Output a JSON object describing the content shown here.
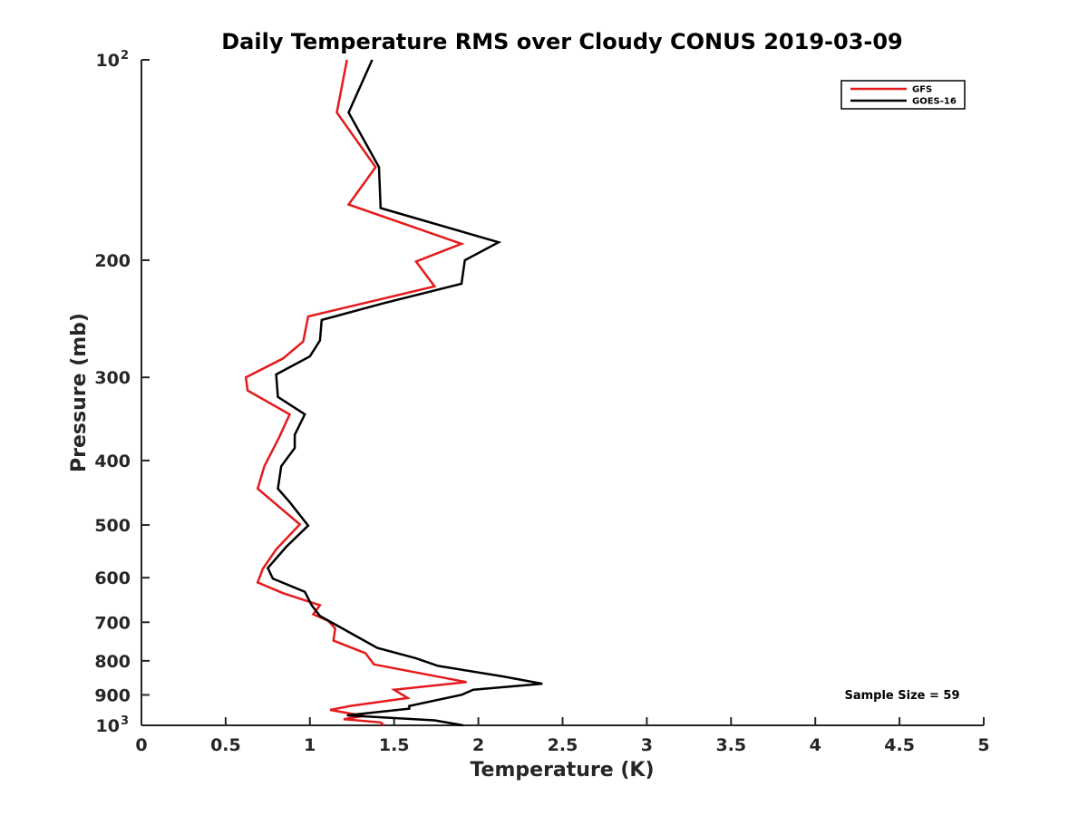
{
  "chart_data": {
    "type": "line",
    "title": "Daily Temperature RMS over Cloudy CONUS 2019-03-09",
    "xlabel": "Temperature (K)",
    "ylabel": "Pressure (mb)",
    "xlim": [
      0,
      5
    ],
    "ylim": [
      100,
      1000
    ],
    "y_scale": "log",
    "y_reversed": true,
    "grid": false,
    "legend_position": "top-right",
    "annotation": "Sample Size = 59",
    "x_ticks": [
      {
        "value": 0,
        "label": "0"
      },
      {
        "value": 0.5,
        "label": "0.5"
      },
      {
        "value": 1,
        "label": "1"
      },
      {
        "value": 1.5,
        "label": "1.5"
      },
      {
        "value": 2,
        "label": "2"
      },
      {
        "value": 2.5,
        "label": "2.5"
      },
      {
        "value": 3,
        "label": "3"
      },
      {
        "value": 3.5,
        "label": "3.5"
      },
      {
        "value": 4,
        "label": "4"
      },
      {
        "value": 4.5,
        "label": "4.5"
      },
      {
        "value": 5,
        "label": "5"
      }
    ],
    "y_ticks": [
      {
        "value": 100,
        "label": "10",
        "sup": "2"
      },
      {
        "value": 200,
        "label": "200",
        "sup": ""
      },
      {
        "value": 300,
        "label": "300",
        "sup": ""
      },
      {
        "value": 400,
        "label": "400",
        "sup": ""
      },
      {
        "value": 500,
        "label": "500",
        "sup": ""
      },
      {
        "value": 600,
        "label": "600",
        "sup": ""
      },
      {
        "value": 700,
        "label": "700",
        "sup": ""
      },
      {
        "value": 800,
        "label": "800",
        "sup": ""
      },
      {
        "value": 900,
        "label": "900",
        "sup": ""
      },
      {
        "value": 1000,
        "label": "10",
        "sup": "3"
      }
    ],
    "series": [
      {
        "name": "GFS",
        "color": "#e41a1c",
        "points": [
          [
            1.22,
            100
          ],
          [
            1.16,
            120
          ],
          [
            1.39,
            145
          ],
          [
            1.23,
            165
          ],
          [
            1.9,
            189
          ],
          [
            1.63,
            201
          ],
          [
            1.74,
            219
          ],
          [
            0.99,
            243
          ],
          [
            0.96,
            265
          ],
          [
            0.84,
            281
          ],
          [
            0.62,
            300
          ],
          [
            0.63,
            314
          ],
          [
            0.88,
            341
          ],
          [
            0.82,
            368
          ],
          [
            0.73,
            408
          ],
          [
            0.69,
            441
          ],
          [
            0.94,
            499
          ],
          [
            0.8,
            544
          ],
          [
            0.72,
            582
          ],
          [
            0.69,
            610
          ],
          [
            0.84,
            633
          ],
          [
            1.06,
            660
          ],
          [
            1.02,
            681
          ],
          [
            1.11,
            697
          ],
          [
            1.15,
            715
          ],
          [
            1.14,
            746
          ],
          [
            1.33,
            779
          ],
          [
            1.38,
            810
          ],
          [
            1.93,
            861
          ],
          [
            1.5,
            884
          ],
          [
            1.58,
            910
          ],
          [
            1.24,
            935
          ],
          [
            1.12,
            948
          ],
          [
            1.32,
            968
          ],
          [
            1.2,
            979
          ],
          [
            1.42,
            990
          ],
          [
            1.44,
            1000
          ]
        ]
      },
      {
        "name": "GOES-16",
        "color": "#000000",
        "points": [
          [
            1.37,
            100
          ],
          [
            1.23,
            120
          ],
          [
            1.41,
            145
          ],
          [
            1.42,
            167
          ],
          [
            2.12,
            188
          ],
          [
            1.92,
            200
          ],
          [
            1.9,
            217
          ],
          [
            1.44,
            232
          ],
          [
            1.07,
            246
          ],
          [
            1.06,
            264
          ],
          [
            1.0,
            279
          ],
          [
            0.8,
            297
          ],
          [
            0.81,
            321
          ],
          [
            0.97,
            341
          ],
          [
            0.91,
            366
          ],
          [
            0.91,
            383
          ],
          [
            0.83,
            408
          ],
          [
            0.81,
            441
          ],
          [
            0.88,
            462
          ],
          [
            0.99,
            501
          ],
          [
            0.86,
            539
          ],
          [
            0.75,
            580
          ],
          [
            0.78,
            602
          ],
          [
            0.97,
            630
          ],
          [
            1.01,
            660
          ],
          [
            1.06,
            685
          ],
          [
            1.23,
            724
          ],
          [
            1.4,
            765
          ],
          [
            1.63,
            793
          ],
          [
            1.76,
            814
          ],
          [
            2.14,
            844
          ],
          [
            2.38,
            866
          ],
          [
            1.97,
            884
          ],
          [
            1.9,
            900
          ],
          [
            1.59,
            935
          ],
          [
            1.59,
            944
          ],
          [
            1.22,
            966
          ],
          [
            1.74,
            983
          ],
          [
            1.91,
            1000
          ]
        ]
      }
    ]
  }
}
